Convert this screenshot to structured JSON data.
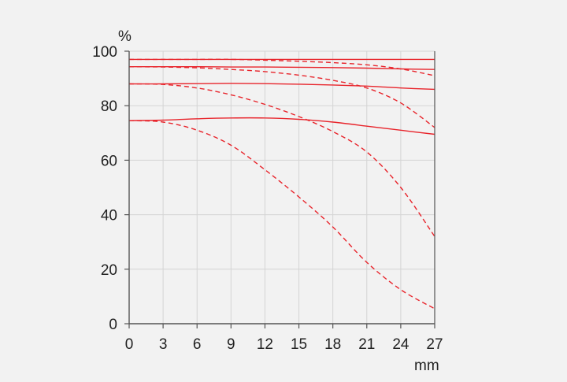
{
  "chart_data": {
    "type": "line",
    "title": "",
    "xlabel": "mm",
    "ylabel": "%",
    "xlim": [
      0,
      27
    ],
    "ylim": [
      0,
      100
    ],
    "x_ticks": [
      "0",
      "3",
      "6",
      "9",
      "12",
      "15",
      "18",
      "21",
      "24",
      "27"
    ],
    "y_ticks": [
      "0",
      "20",
      "40",
      "60",
      "80",
      "100"
    ],
    "grid": true,
    "legend": "none",
    "line_color": "#e8242b",
    "grid_color": "#d4d4d4",
    "axis_color": "#555555",
    "series": [
      {
        "style": "solid",
        "x": [
          0,
          9,
          18,
          24,
          27
        ],
        "y": [
          97.0,
          97.0,
          97.0,
          97.0,
          97.0
        ]
      },
      {
        "style": "dashed",
        "x": [
          0,
          6,
          9,
          12,
          15,
          18,
          21,
          24,
          27
        ],
        "y": [
          97.0,
          97.0,
          97.0,
          96.7,
          96.3,
          95.8,
          95.0,
          93.5,
          91.0
        ]
      },
      {
        "style": "solid",
        "x": [
          0,
          6,
          9,
          12,
          15,
          18,
          21,
          24,
          27
        ],
        "y": [
          94.3,
          94.3,
          94.2,
          94.2,
          94.1,
          94.0,
          93.8,
          93.5,
          93.3
        ]
      },
      {
        "style": "dashed",
        "x": [
          0,
          3,
          6,
          9,
          12,
          15,
          18,
          21,
          24,
          27
        ],
        "y": [
          94.3,
          94.2,
          93.9,
          93.3,
          92.5,
          91.2,
          89.3,
          86.5,
          81.0,
          72.0
        ]
      },
      {
        "style": "solid",
        "x": [
          0,
          3,
          6,
          9,
          12,
          15,
          18,
          21,
          24,
          27
        ],
        "y": [
          88.0,
          88.0,
          88.1,
          88.2,
          88.1,
          87.9,
          87.6,
          87.2,
          86.5,
          86.0
        ]
      },
      {
        "style": "dashed",
        "x": [
          0,
          3,
          6,
          9,
          12,
          15,
          18,
          21,
          24,
          27
        ],
        "y": [
          88.0,
          87.8,
          86.5,
          84.0,
          80.5,
          76.0,
          70.5,
          63.0,
          50.0,
          32.0
        ]
      },
      {
        "style": "solid",
        "x": [
          0,
          3,
          6,
          9,
          12,
          15,
          18,
          21,
          24,
          27
        ],
        "y": [
          74.5,
          74.7,
          75.2,
          75.5,
          75.5,
          75.0,
          74.0,
          72.5,
          71.0,
          69.5
        ]
      },
      {
        "style": "dashed",
        "x": [
          0,
          3,
          6,
          9,
          12,
          15,
          18,
          21,
          24,
          27
        ],
        "y": [
          74.5,
          74.0,
          71.0,
          65.5,
          56.5,
          46.5,
          35.5,
          22.5,
          12.5,
          5.5
        ]
      }
    ]
  }
}
